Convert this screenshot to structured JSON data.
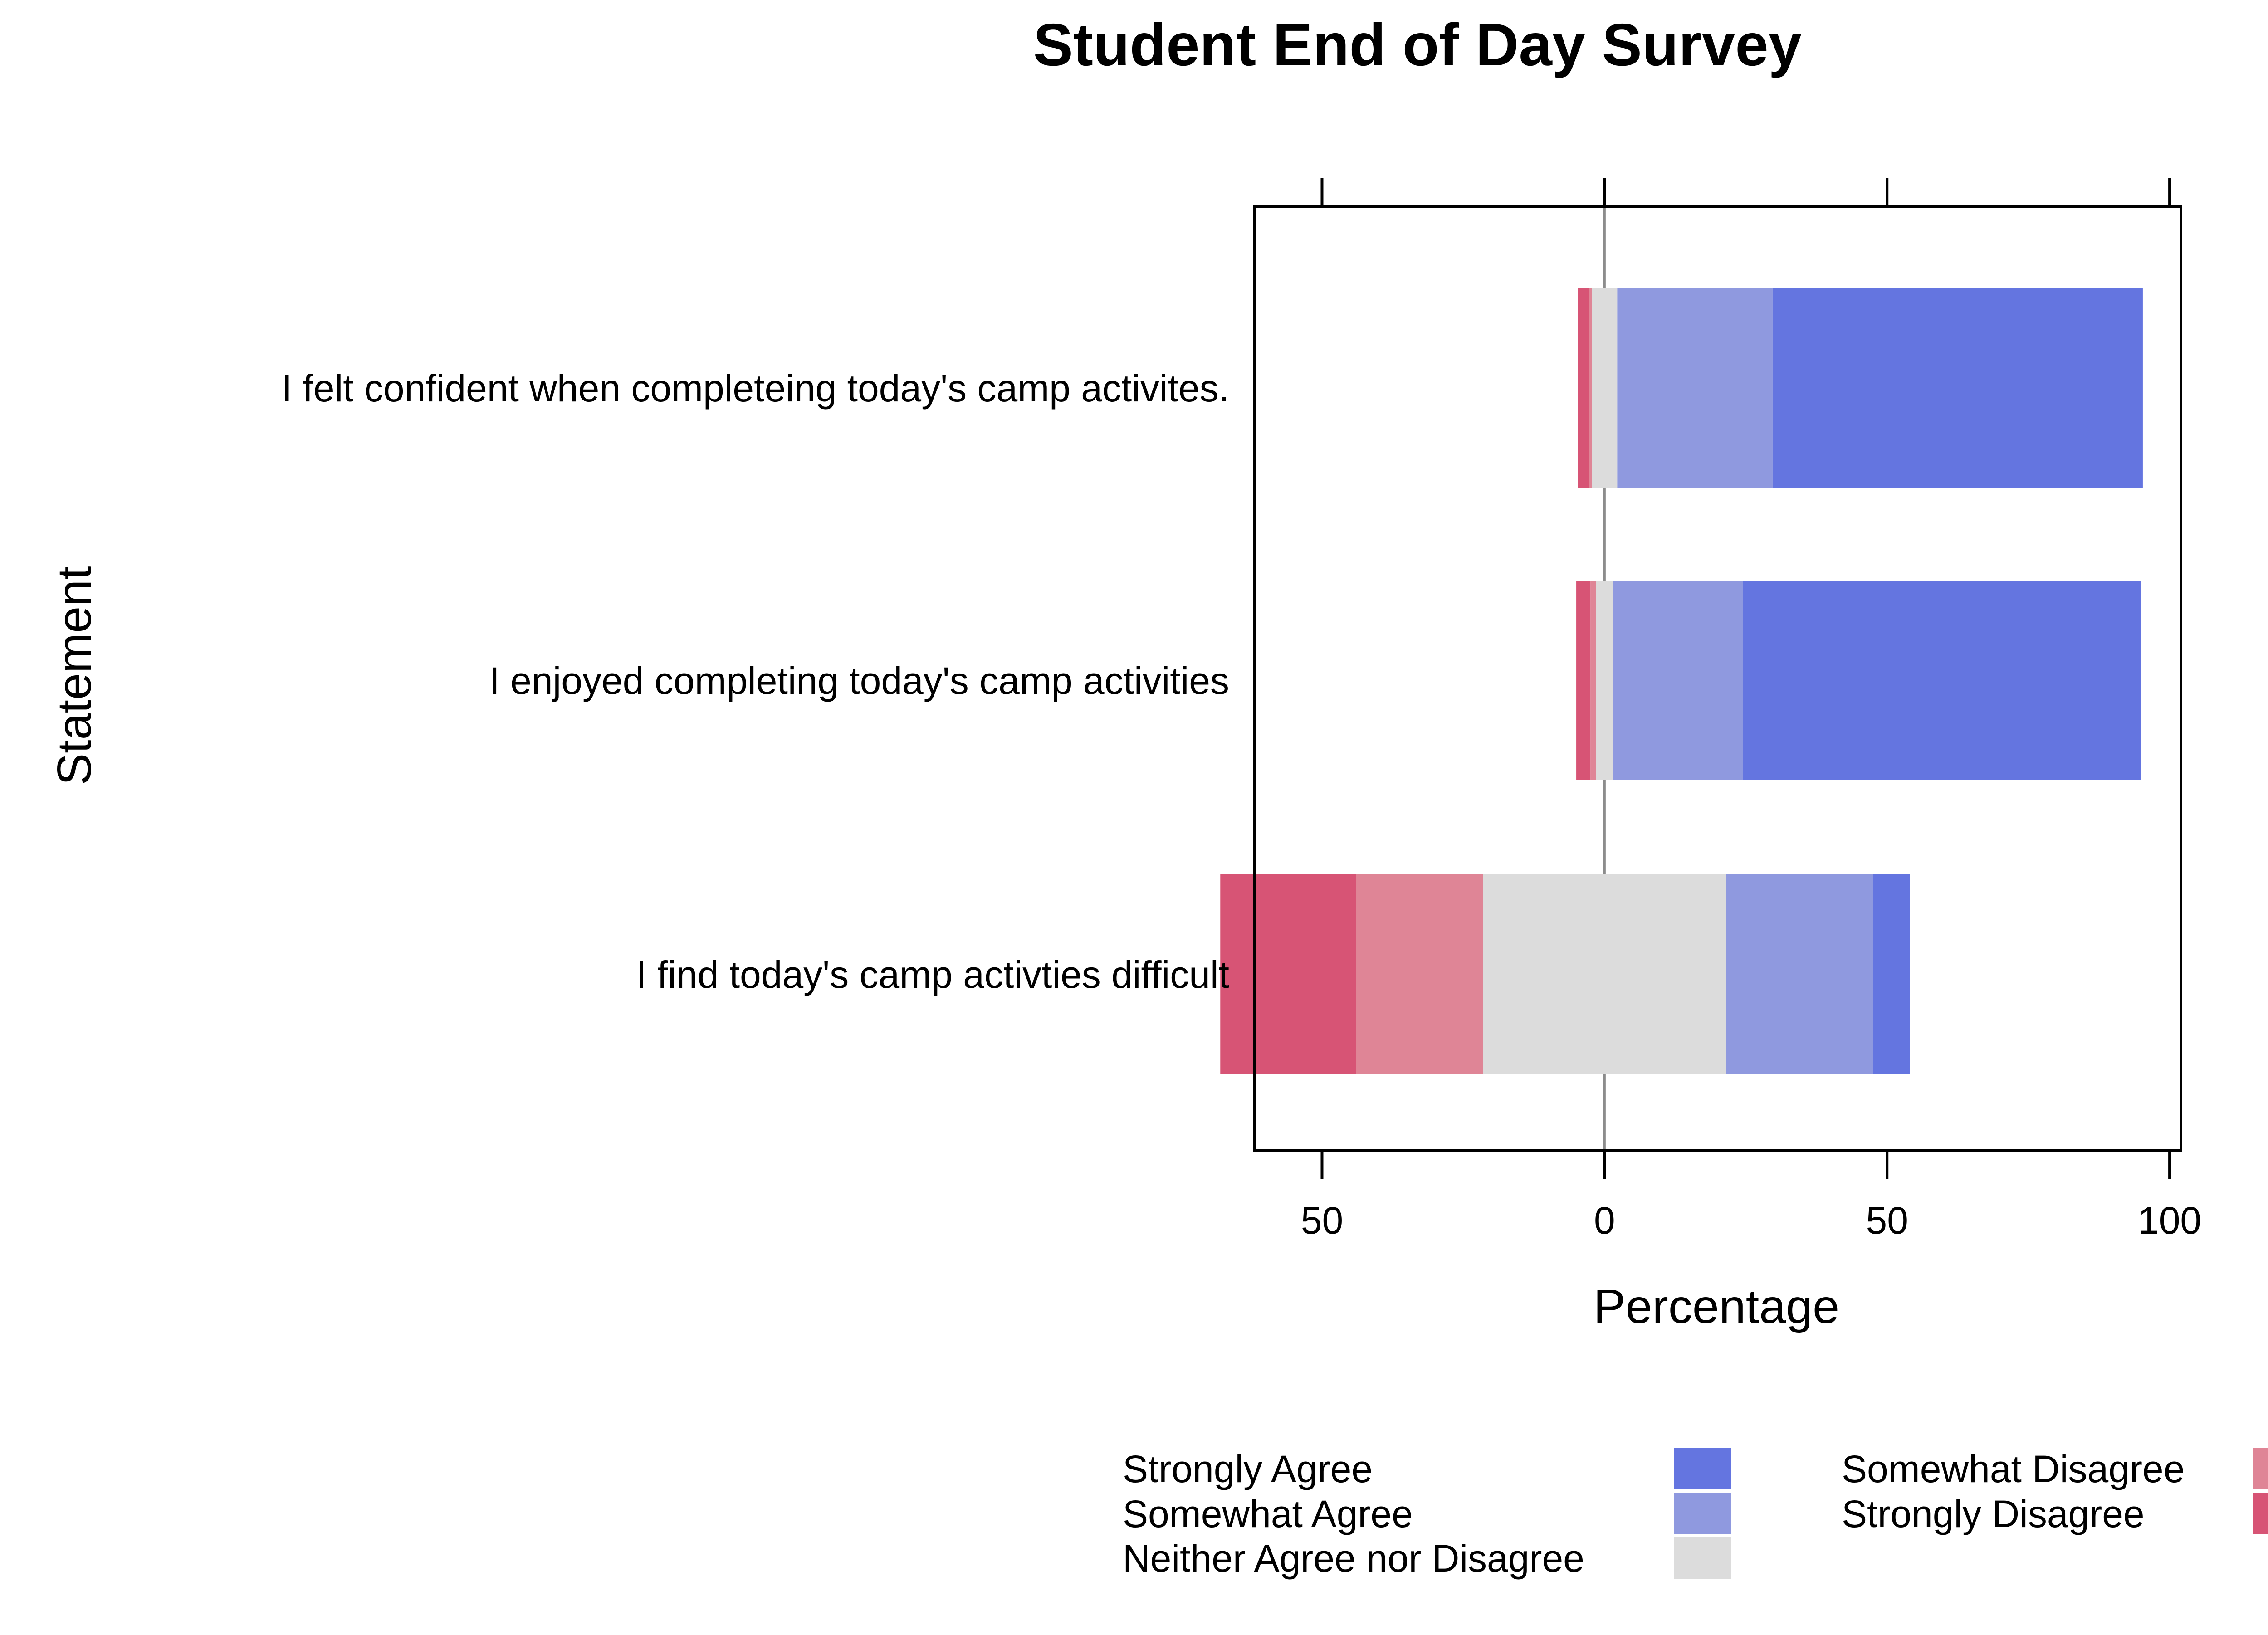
{
  "chart_data": {
    "type": "bar",
    "subtype": "diverging-stacked-horizontal",
    "title": "Student End of Day Survey",
    "xlabel": "Percentage",
    "ylabel": "Statement",
    "xlim": [
      -62,
      102
    ],
    "x_ticks": [
      {
        "value": -50,
        "label": "50"
      },
      {
        "value": 0,
        "label": "0"
      },
      {
        "value": 50,
        "label": "50"
      },
      {
        "value": 100,
        "label": "100"
      }
    ],
    "grid": false,
    "reference_line": 0,
    "categories": [
      "I felt confident when completeing today's camp activites.",
      "I enjoyed completing today's camp activities",
      "I find today's camp activties difficult"
    ],
    "series": [
      {
        "name": "Strongly Agree",
        "color": "#6475E0",
        "values": [
          65.5,
          70.5,
          6.5
        ]
      },
      {
        "name": "Somewhat Agree",
        "color": "#8F99DF",
        "values": [
          27.5,
          23.0,
          26.0
        ]
      },
      {
        "name": "Neither Agree nor Disagree",
        "color": "#DCDCDC",
        "values": [
          4.5,
          3.0,
          43.0
        ]
      },
      {
        "name": "Somewhat Disagree",
        "color": "#DF8596",
        "values": [
          0.5,
          1.0,
          22.5
        ]
      },
      {
        "name": "Strongly Disagree",
        "color": "#D75475",
        "values": [
          2.0,
          2.5,
          24.0
        ]
      }
    ],
    "legend": {
      "placement": "bottom",
      "columns": [
        [
          "Strongly Agree",
          "Somewhat Agree",
          "Neither Agree nor Disagree"
        ],
        [
          "Somewhat Disagree",
          "Strongly Disagree"
        ]
      ]
    }
  }
}
